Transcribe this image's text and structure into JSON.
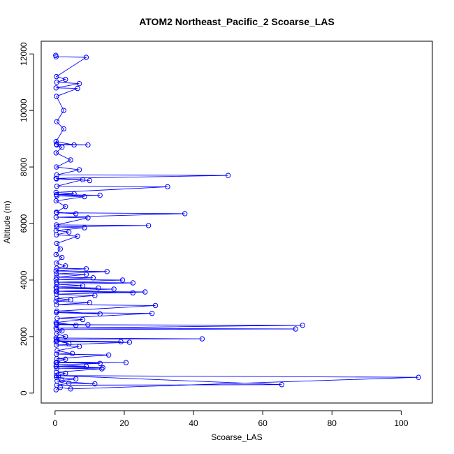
{
  "chart_data": {
    "type": "scatter",
    "title": "ATOM2 Northeast_Pacific_2 Scoarse_LAS",
    "xlabel": "Scoarse_LAS",
    "ylabel": "Altitude (m)",
    "xlim": [
      -4,
      109
    ],
    "ylim": [
      -350,
      12450
    ],
    "xticks": [
      0,
      20,
      40,
      60,
      80,
      100
    ],
    "yticks": [
      0,
      2000,
      4000,
      6000,
      8000,
      10000,
      12000
    ],
    "grid": false,
    "series": [
      {
        "color": "#0000ff",
        "marker": "open-circle",
        "connected": true,
        "points": [
          [
            0.3,
            120
          ],
          [
            1.5,
            200
          ],
          [
            4.5,
            150
          ],
          [
            105,
            560
          ],
          [
            0.4,
            620
          ],
          [
            65.5,
            300
          ],
          [
            0.5,
            280
          ],
          [
            4,
            350
          ],
          [
            11.5,
            330
          ],
          [
            0.6,
            420
          ],
          [
            2,
            450
          ],
          [
            6,
            500
          ],
          [
            0.4,
            560
          ],
          [
            1,
            610
          ],
          [
            3,
            700
          ],
          [
            0.4,
            740
          ],
          [
            13.5,
            860
          ],
          [
            0.5,
            880
          ],
          [
            13.8,
            900
          ],
          [
            0.3,
            950
          ],
          [
            9,
            950
          ],
          [
            0.4,
            1000
          ],
          [
            13,
            1050
          ],
          [
            0.3,
            1080
          ],
          [
            20.5,
            1080
          ],
          [
            0.6,
            1100
          ],
          [
            3,
            1200
          ],
          [
            0.5,
            1220
          ],
          [
            15.5,
            1350
          ],
          [
            0.4,
            1380
          ],
          [
            5,
            1400
          ],
          [
            0.6,
            1500
          ],
          [
            7,
            1650
          ],
          [
            0.4,
            1700
          ],
          [
            21.5,
            1800
          ],
          [
            0.3,
            1820
          ],
          [
            19,
            1820
          ],
          [
            0.5,
            1850
          ],
          [
            4,
            1750
          ],
          [
            0.4,
            1900
          ],
          [
            42.5,
            1920
          ],
          [
            0.3,
            1950
          ],
          [
            3,
            2000
          ],
          [
            0.5,
            2100
          ],
          [
            2,
            2200
          ],
          [
            0.4,
            2250
          ],
          [
            69.5,
            2270
          ],
          [
            0.3,
            2300
          ],
          [
            71.5,
            2400
          ],
          [
            0.5,
            2420
          ],
          [
            9.5,
            2420
          ],
          [
            0.4,
            2450
          ],
          [
            6,
            2400
          ],
          [
            0.3,
            2500
          ],
          [
            8,
            2600
          ],
          [
            0.6,
            2650
          ],
          [
            28,
            2820
          ],
          [
            0.4,
            2850
          ],
          [
            13,
            2800
          ],
          [
            0.5,
            2900
          ],
          [
            29,
            3100
          ],
          [
            0.4,
            3130
          ],
          [
            10,
            3200
          ],
          [
            0.3,
            3250
          ],
          [
            4.5,
            3300
          ],
          [
            0.5,
            3350
          ],
          [
            11.5,
            3450
          ],
          [
            0.4,
            3500
          ],
          [
            26,
            3580
          ],
          [
            0.3,
            3600
          ],
          [
            22.5,
            3550
          ],
          [
            0.5,
            3600
          ],
          [
            17,
            3680
          ],
          [
            0.4,
            3700
          ],
          [
            12.5,
            3720
          ],
          [
            0.3,
            3750
          ],
          [
            8,
            3800
          ],
          [
            0.5,
            3850
          ],
          [
            22.5,
            3900
          ],
          [
            0.4,
            3920
          ],
          [
            19.5,
            4000
          ],
          [
            0.3,
            4020
          ],
          [
            11,
            4080
          ],
          [
            0.5,
            4100
          ],
          [
            9,
            4200
          ],
          [
            0.4,
            4220
          ],
          [
            15,
            4300
          ],
          [
            0.3,
            4320
          ],
          [
            9,
            4400
          ],
          [
            0.5,
            4420
          ],
          [
            3,
            4500
          ],
          [
            0.4,
            4600
          ],
          [
            2,
            4800
          ],
          [
            0.3,
            4900
          ],
          [
            1.5,
            5100
          ],
          [
            0.5,
            5300
          ],
          [
            6.5,
            5550
          ],
          [
            0.4,
            5600
          ],
          [
            4,
            5700
          ],
          [
            0.3,
            5750
          ],
          [
            8.5,
            5850
          ],
          [
            0.5,
            5880
          ],
          [
            27,
            5930
          ],
          [
            0.4,
            5950
          ],
          [
            9.5,
            6200
          ],
          [
            0.3,
            6220
          ],
          [
            37.5,
            6350
          ],
          [
            0.5,
            6380
          ],
          [
            6,
            6350
          ],
          [
            0.4,
            6400
          ],
          [
            3,
            6600
          ],
          [
            0.3,
            6800
          ],
          [
            8.5,
            6950
          ],
          [
            0.5,
            6980
          ],
          [
            13,
            7000
          ],
          [
            0.4,
            7020
          ],
          [
            5.5,
            7050
          ],
          [
            0.3,
            7100
          ],
          [
            32.5,
            7300
          ],
          [
            0.5,
            7320
          ],
          [
            8,
            7550
          ],
          [
            0.4,
            7580
          ],
          [
            10,
            7520
          ],
          [
            0.3,
            7600
          ],
          [
            50,
            7700
          ],
          [
            0.5,
            7720
          ],
          [
            7,
            7900
          ],
          [
            0.4,
            8000
          ],
          [
            4.5,
            8250
          ],
          [
            0.3,
            8500
          ],
          [
            2,
            8700
          ],
          [
            0.5,
            8780
          ],
          [
            9.5,
            8780
          ],
          [
            0.4,
            8800
          ],
          [
            5.5,
            8780
          ],
          [
            0.3,
            8900
          ],
          [
            2.5,
            9350
          ],
          [
            0.5,
            9600
          ],
          [
            2.5,
            10000
          ],
          [
            0.4,
            10500
          ],
          [
            6.5,
            10780
          ],
          [
            0.3,
            10800
          ],
          [
            7,
            10950
          ],
          [
            0.5,
            11000
          ],
          [
            3,
            11100
          ],
          [
            0.4,
            11200
          ],
          [
            9,
            11880
          ],
          [
            0.3,
            11900
          ],
          [
            0.2,
            11950
          ]
        ]
      }
    ]
  }
}
